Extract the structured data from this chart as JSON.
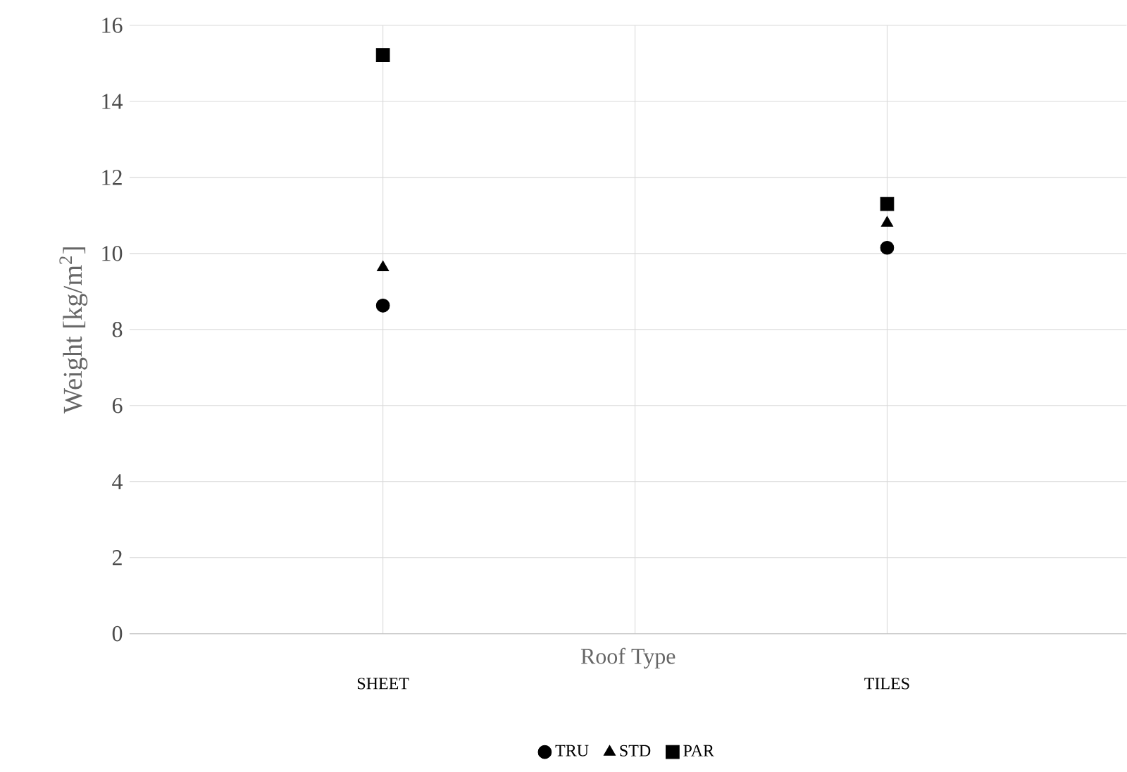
{
  "chart_data": {
    "type": "scatter",
    "xlabel": "Roof Type",
    "ylabel": "Weight [kg/m$^{2}$]",
    "categories": [
      "SHEET",
      null,
      "TILES"
    ],
    "series": [
      {
        "name": "TRU",
        "color": "#000000",
        "marker": "circle",
        "values": [
          8.63,
          null,
          10.15
        ]
      },
      {
        "name": "STD",
        "color": "#000000",
        "marker": "triangle",
        "values": [
          9.63,
          null,
          10.8
        ]
      },
      {
        "name": "PAR",
        "color": "#000000",
        "marker": "square",
        "values": [
          15.22,
          null,
          11.3
        ]
      }
    ],
    "ylim": [
      0,
      16
    ],
    "yticks": [
      0,
      2,
      4,
      6,
      8,
      10,
      12,
      14,
      16
    ],
    "grid": true,
    "legend": "bottom"
  }
}
